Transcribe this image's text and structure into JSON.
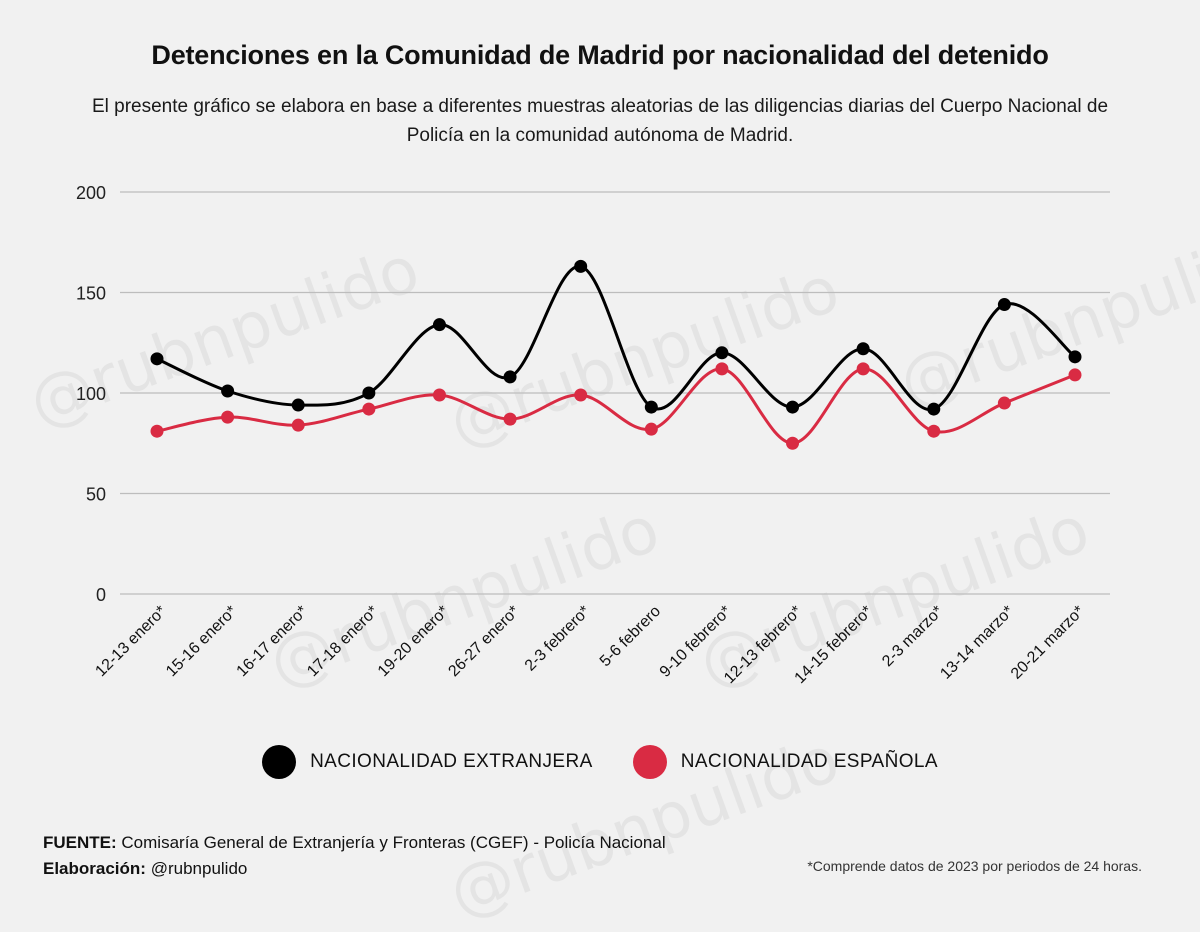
{
  "header": {
    "title": "Detenciones en la Comunidad de Madrid por nacionalidad del detenido",
    "subtitle": "El presente gráfico se elabora en base a diferentes muestras aleatorias de las diligencias diarias del Cuerpo Nacional de Policía en la comunidad autónoma de Madrid."
  },
  "chart_data": {
    "type": "line",
    "title": "Detenciones en la Comunidad de Madrid por nacionalidad del detenido",
    "xlabel": "",
    "ylabel": "",
    "ylim": [
      0,
      200
    ],
    "yticks": [
      0,
      50,
      100,
      150,
      200
    ],
    "grid": true,
    "legend_position": "bottom",
    "categories": [
      "12-13 enero*",
      "15-16 enero*",
      "16-17 enero*",
      "17-18 enero*",
      "19-20 enero*",
      "26-27 enero*",
      "2-3 febrero*",
      "5-6 febrero",
      "9-10 febrero*",
      "12-13 febrero*",
      "14-15 febrero*",
      "2-3 marzo*",
      "13-14 marzo*",
      "20-21 marzo*"
    ],
    "series": [
      {
        "name": "NACIONALIDAD EXTRANJERA",
        "color": "#000000",
        "values": [
          117,
          101,
          94,
          100,
          134,
          108,
          163,
          93,
          120,
          93,
          122,
          92,
          144,
          118
        ]
      },
      {
        "name": "NACIONALIDAD ESPAÑOLA",
        "color": "#d92b43",
        "values": [
          81,
          88,
          84,
          92,
          99,
          87,
          99,
          82,
          112,
          75,
          112,
          81,
          95,
          109
        ]
      }
    ]
  },
  "legend": {
    "items": [
      {
        "label": "NACIONALIDAD EXTRANJERA",
        "color": "#000000"
      },
      {
        "label": "NACIONALIDAD ESPAÑOLA",
        "color": "#d92b43"
      }
    ]
  },
  "footer": {
    "source_label": "FUENTE:",
    "source_text": "Comisaría General de Extranjería y Fronteras (CGEF) - Policía Nacional",
    "credit_label": "Elaboración:",
    "credit_text": "@rubnpulido",
    "note": "*Comprende datos de 2023 por periodos de 24 horas."
  },
  "watermark": {
    "text": "@rubnpulido"
  }
}
